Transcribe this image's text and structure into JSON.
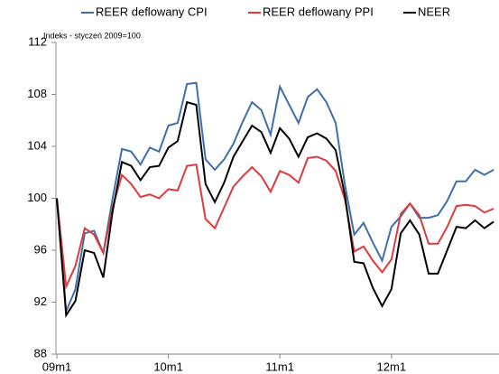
{
  "chart_data": {
    "type": "line",
    "y_axis_label": "Indeks - styczeń 2009=100",
    "categories": [
      "09m1",
      null,
      null,
      null,
      null,
      null,
      null,
      null,
      null,
      null,
      null,
      null,
      "10m1",
      null,
      null,
      null,
      null,
      null,
      null,
      null,
      null,
      null,
      null,
      null,
      "11m1",
      null,
      null,
      null,
      null,
      null,
      null,
      null,
      null,
      null,
      null,
      null,
      "12m1",
      null,
      null,
      null,
      null,
      null,
      null,
      null,
      null,
      null,
      null,
      null
    ],
    "series": [
      {
        "name": "REER deflowany CPI",
        "color": "#3f6fa8",
        "values": [
          100,
          91.3,
          93,
          97.3,
          97.5,
          95.8,
          100,
          103.8,
          103.6,
          102.6,
          103.9,
          103.6,
          105.6,
          105.8,
          108.8,
          108.9,
          103,
          102.2,
          103,
          104.2,
          105.9,
          107.4,
          106.8,
          104.9,
          108.6,
          107.2,
          105.8,
          107.8,
          108.4,
          107.4,
          105.8,
          101,
          97.2,
          98.1,
          96.6,
          95.2,
          97.8,
          98.6,
          99.6,
          98.5,
          98.5,
          98.7,
          99.8,
          101.3,
          101.3,
          102.2,
          101.8,
          102.2
        ]
      },
      {
        "name": "REER deflowany PPI",
        "color": "#e03a3c",
        "values": [
          100,
          93.2,
          94.8,
          97.7,
          97.2,
          95.8,
          99.3,
          101.8,
          101.1,
          100.1,
          100.3,
          100,
          100.7,
          100.6,
          102.5,
          102.6,
          98.4,
          97.7,
          99.3,
          100.9,
          101.7,
          102.4,
          101.7,
          100.5,
          102.1,
          101.8,
          101.2,
          103.1,
          103.2,
          102.9,
          102.1,
          99.9,
          95.9,
          96.3,
          95.2,
          94.3,
          95.3,
          98.8,
          99.6,
          98.7,
          96.5,
          96.5,
          97.8,
          99.4,
          99.5,
          99.4,
          98.9,
          99.2
        ]
      },
      {
        "name": "NEER",
        "color": "#000000",
        "values": [
          100,
          91,
          92.1,
          96,
          95.8,
          93.9,
          99,
          102.8,
          102.5,
          101.4,
          102.4,
          102.5,
          103.9,
          104.4,
          107.4,
          107.2,
          101.1,
          99.7,
          101.2,
          103.2,
          104.4,
          105.6,
          105.1,
          103.5,
          105.4,
          104.6,
          103.2,
          104.7,
          105,
          104.6,
          103.7,
          100.2,
          95.1,
          95,
          93.1,
          91.7,
          93,
          97.3,
          98.3,
          97.2,
          94.2,
          94.2,
          96,
          97.8,
          97.7,
          98.3,
          97.7,
          98.2
        ]
      }
    ],
    "ylim": [
      88,
      112
    ],
    "yticks": [
      88,
      92,
      96,
      100,
      104,
      108,
      112
    ],
    "grid": false,
    "legend": "top"
  }
}
